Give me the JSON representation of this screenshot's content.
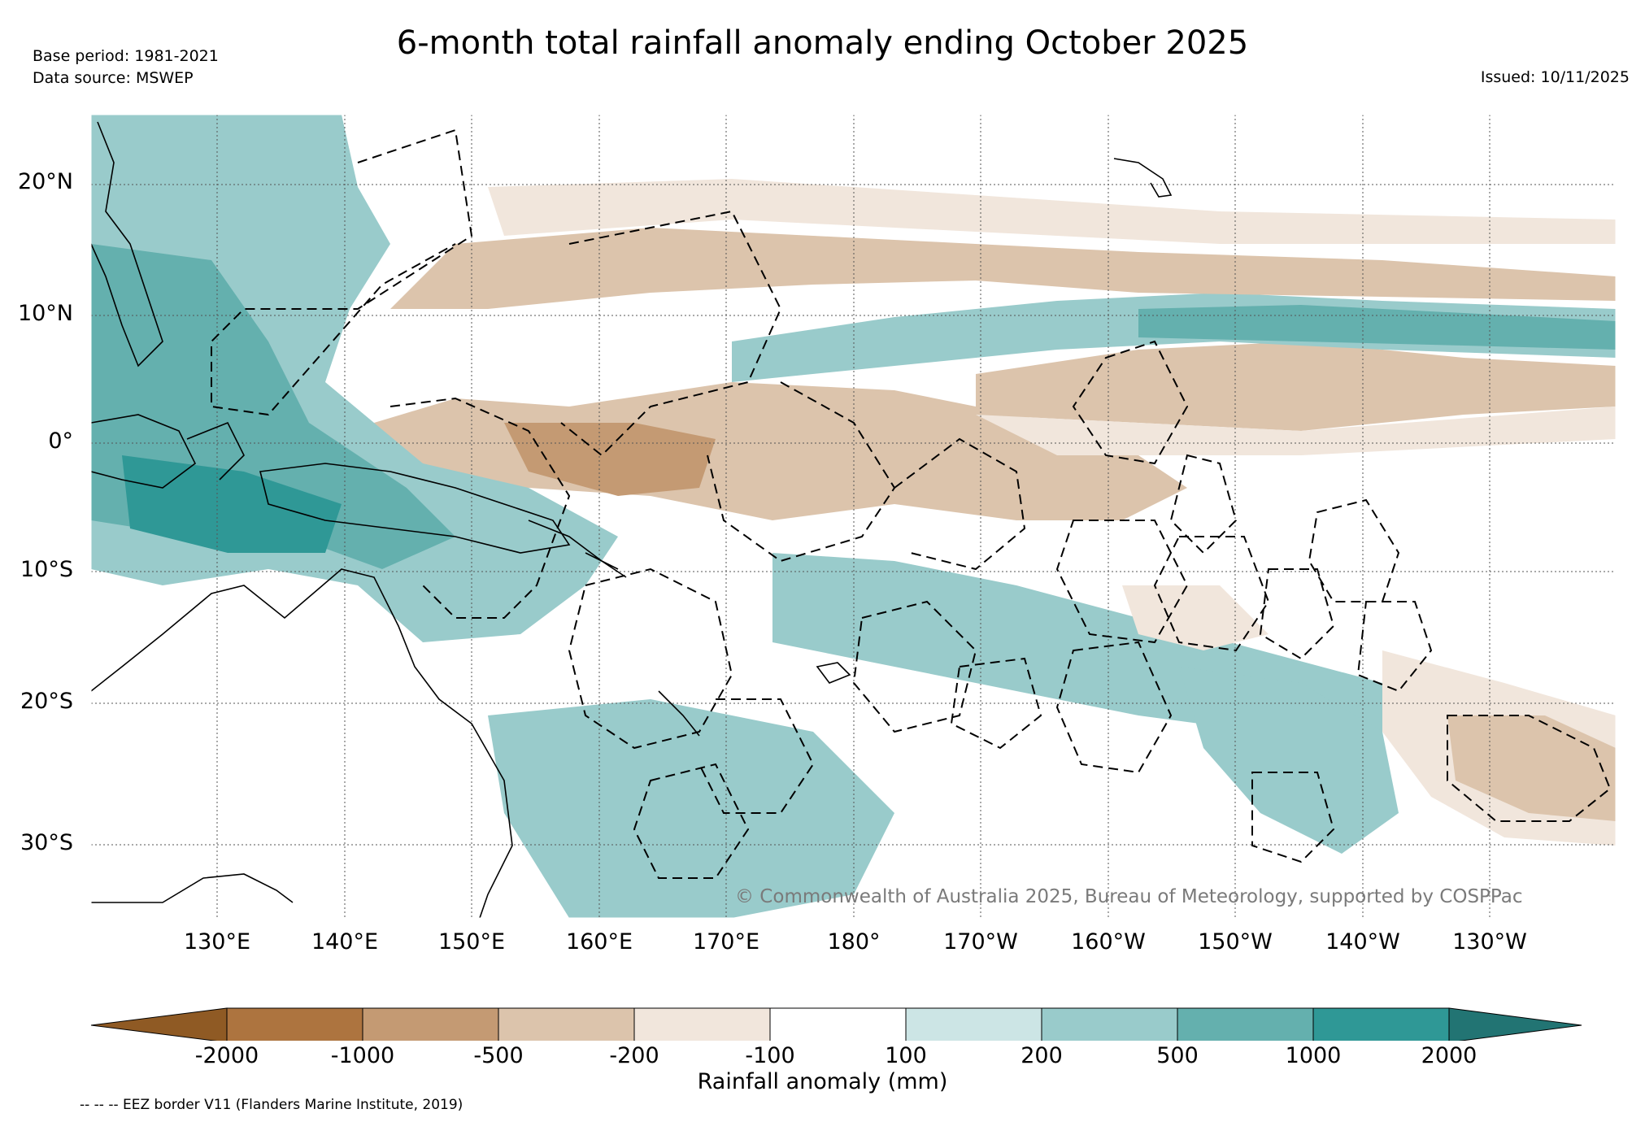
{
  "title": "6-month total rainfall anomaly ending October 2025",
  "meta": {
    "base_period": "Base period: 1981-2021",
    "data_source": "Data source: MSWEP",
    "issued": "Issued: 10/11/2025"
  },
  "map": {
    "lat_labels": [
      "20°N",
      "10°N",
      "0°",
      "10°S",
      "20°S",
      "30°S"
    ],
    "lon_labels": [
      "130°E",
      "140°E",
      "150°E",
      "160°E",
      "170°E",
      "180°",
      "170°W",
      "160°W",
      "150°W",
      "140°W",
      "130°W"
    ],
    "copyright": "© Commonwealth of Australia 2025, Bureau of Meteorology, supported by COSPPac"
  },
  "colorbar": {
    "ticks": [
      "-2000",
      "-1000",
      "-500",
      "-200",
      "-100",
      "100",
      "200",
      "500",
      "1000",
      "2000"
    ],
    "colors": [
      "#8f5a24",
      "#ad743f",
      "#c49a73",
      "#dcc4ac",
      "#f1e6dc",
      "#ffffff",
      "#cce5e5",
      "#99cbcb",
      "#64b0ae",
      "#2f9896",
      "#227473"
    ],
    "title": "Rainfall anomaly (mm)"
  },
  "legend": {
    "eez_note": "-- -- -- EEZ border V11 (Flanders Marine Institute, 2019)"
  }
}
